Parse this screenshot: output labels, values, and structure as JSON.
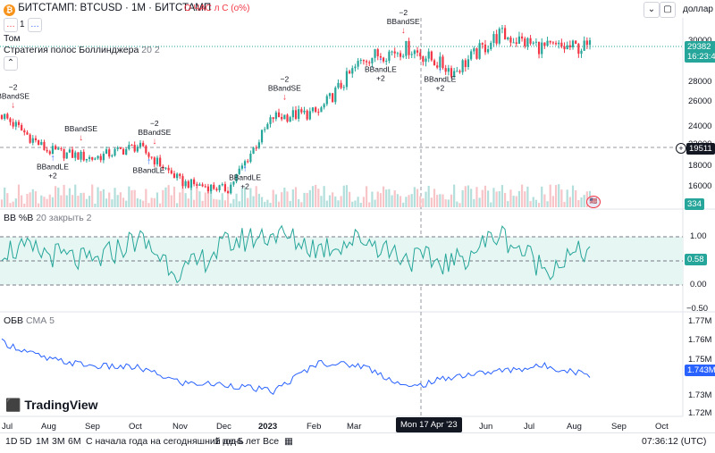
{
  "header": {
    "symbol": "БИТСТАМП: BTCUSD · 1M · БИТСТАМП",
    "ohlc_text": "О ЧАС л С (о%)",
    "pane_counter": "1",
    "currency": "доллар США",
    "volume_label": "Том",
    "strategy_label": "Стратегия полос Боллинджера",
    "strategy_params": "20 2"
  },
  "price_axis": {
    "ticks": [
      "30000",
      "28000",
      "26000",
      "24000",
      "22000",
      "20000",
      "18000",
      "16000"
    ],
    "last_price": "29382",
    "countdown": "16:23:43",
    "crosshair_price": "19511",
    "volume_value": "334"
  },
  "bb_pane": {
    "label": "BB %B",
    "params": "20 закрыть 2",
    "ticks": [
      "1.00",
      "0.50",
      "0.00",
      "−0.50"
    ],
    "last_value": "0.58"
  },
  "obv_pane": {
    "label": "ОБВ",
    "params": "СМА 5",
    "ticks": [
      "1.77M",
      "1.76M",
      "1.75M",
      "1.74M",
      "1.73M",
      "1.72M"
    ],
    "last_value": "1.743M"
  },
  "x_axis": {
    "labels": [
      "Jul",
      "Aug",
      "Sep",
      "Oct",
      "Nov",
      "Dec",
      "2023",
      "Feb",
      "Mar",
      "Jun",
      "Jul",
      "Aug",
      "Sep",
      "Oct"
    ],
    "crosshair_date": "Mon 17 Apr '23"
  },
  "signals": [
    {
      "type": "BBandSE",
      "amount": "−2"
    },
    {
      "type": "BBandLE",
      "amount": "+2"
    },
    {
      "type": "BBandSE",
      "amount": ""
    },
    {
      "type": "BBandSE",
      "amount": "−2"
    },
    {
      "type": "BBandLE",
      "amount": ""
    },
    {
      "type": "BBandLE",
      "amount": "+2"
    },
    {
      "type": "BBandSE",
      "amount": "−2"
    },
    {
      "type": "BBandLE",
      "amount": "+2"
    },
    {
      "type": "BBandSE",
      "amount": "−2"
    },
    {
      "type": "BBandLE",
      "amount": "+2"
    }
  ],
  "logo": "TradingView",
  "bottom_bar": {
    "ranges": [
      "1D",
      "5D",
      "1M",
      "3M",
      "6M",
      "С начала года на сегодняшний день",
      "1 год",
      "5 лет",
      "Все"
    ],
    "time": "07:36:12 (UTC)"
  },
  "colors": {
    "up": "#26a69a",
    "down": "#f23645",
    "bb_line": "#26a69a",
    "bb_fill": "#e6f6f3",
    "obv_line": "#2962ff",
    "signal_short": "#f23645",
    "signal_long": "#2962ff"
  },
  "chart_data": [
    {
      "type": "candlestick",
      "xlabel": "",
      "ylabel": "",
      "ylim": [
        15000,
        32000
      ],
      "x": [
        "2022-07",
        "2022-08",
        "2022-09",
        "2022-10",
        "2022-11",
        "2022-12",
        "2023-01",
        "2023-02",
        "2023-03",
        "2023-04",
        "2023-05",
        "2023-06",
        "2023-07",
        "2023-08"
      ],
      "close": [
        23300,
        20100,
        19400,
        20500,
        17200,
        16600,
        23100,
        23500,
        28400,
        29300,
        27200,
        30500,
        29300,
        29382
      ]
    },
    {
      "type": "line",
      "ylim": [
        -0.6,
        1.1
      ],
      "reference_lines": [
        1.0,
        0.5,
        0.0
      ],
      "x": [
        "2022-07",
        "2022-08",
        "2022-09",
        "2022-10",
        "2022-11",
        "2022-12",
        "2023-01",
        "2023-02",
        "2023-03",
        "2023-04",
        "2023-05",
        "2023-06",
        "2023-07",
        "2023-08"
      ],
      "values": [
        0.6,
        0.5,
        0.3,
        0.8,
        0.1,
        0.7,
        0.9,
        0.6,
        0.8,
        0.4,
        0.3,
        0.9,
        0.2,
        0.58
      ]
    },
    {
      "type": "line",
      "ylim": [
        1.72,
        1.775
      ],
      "x": [
        "2022-07",
        "2022-08",
        "2022-09",
        "2022-10",
        "2022-11",
        "2022-12",
        "2023-01",
        "2023-02",
        "2023-03",
        "2023-04",
        "2023-05",
        "2023-06",
        "2023-07",
        "2023-08"
      ],
      "values": [
        1.762,
        1.752,
        1.748,
        1.747,
        1.738,
        1.737,
        1.733,
        1.75,
        1.748,
        1.735,
        1.742,
        1.745,
        1.748,
        1.743
      ]
    }
  ]
}
